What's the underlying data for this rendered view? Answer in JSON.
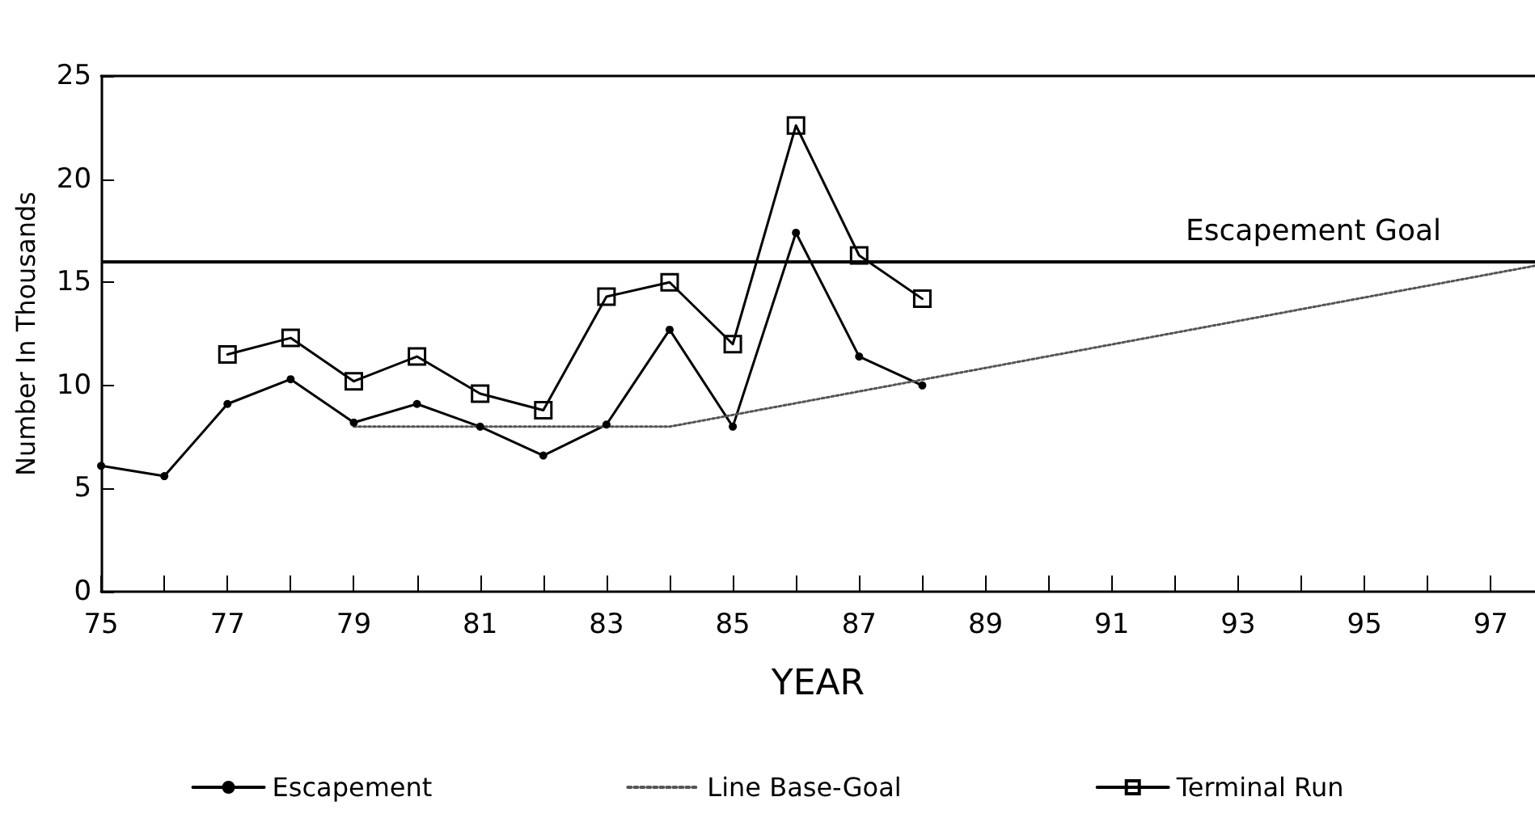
{
  "chart_data": {
    "type": "line",
    "xlabel": "YEAR",
    "ylabel": "Number In Thousands",
    "xlim": [
      75,
      97.7
    ],
    "ylim": [
      0,
      25
    ],
    "xticks": [
      75,
      {
        "value": 76,
        "label": null
      },
      77,
      {
        "value": 78,
        "label": null
      },
      79,
      {
        "value": 80,
        "label": null
      },
      81,
      {
        "value": 82,
        "label": null
      },
      83,
      {
        "value": 84,
        "label": null
      },
      85,
      {
        "value": 86,
        "label": null
      },
      87,
      {
        "value": 88,
        "label": null
      },
      89,
      {
        "value": 90,
        "label": null
      },
      91,
      {
        "value": 92,
        "label": null
      },
      93,
      {
        "value": 94,
        "label": null
      },
      95,
      {
        "value": 96,
        "label": null
      },
      97
    ],
    "yticks": [
      0,
      5,
      10,
      15,
      20,
      25
    ],
    "series": [
      {
        "name": "Escapement",
        "color": "#000000",
        "marker": "circle",
        "line_style": "solid",
        "x": [
          75,
          76,
          77,
          78,
          79,
          80,
          81,
          82,
          83,
          84,
          85,
          86,
          87,
          88
        ],
        "values": [
          6.1,
          5.6,
          9.1,
          10.3,
          8.2,
          9.1,
          8.0,
          6.6,
          8.1,
          12.7,
          8.0,
          17.4,
          11.4,
          10.0
        ]
      },
      {
        "name": "Line Base-Goal",
        "color": "#555555",
        "marker": "none",
        "line_style": "dotted",
        "x": [
          79,
          84,
          97.7
        ],
        "values": [
          8.0,
          8.0,
          15.8
        ]
      },
      {
        "name": "Terminal Run",
        "color": "#000000",
        "marker": "square",
        "line_style": "solid",
        "x": [
          77,
          78,
          79,
          80,
          81,
          82,
          83,
          84,
          85,
          86,
          87,
          88
        ],
        "values": [
          11.5,
          12.3,
          10.2,
          11.4,
          9.6,
          8.8,
          14.3,
          15.0,
          12.0,
          22.6,
          16.3,
          14.2
        ]
      }
    ],
    "ref_lines": [
      {
        "axis": "y",
        "value": 16,
        "label": "Escapement Goal",
        "color": "#000000",
        "line_style": "solid"
      }
    ],
    "legend": "bottom",
    "grid": false
  }
}
